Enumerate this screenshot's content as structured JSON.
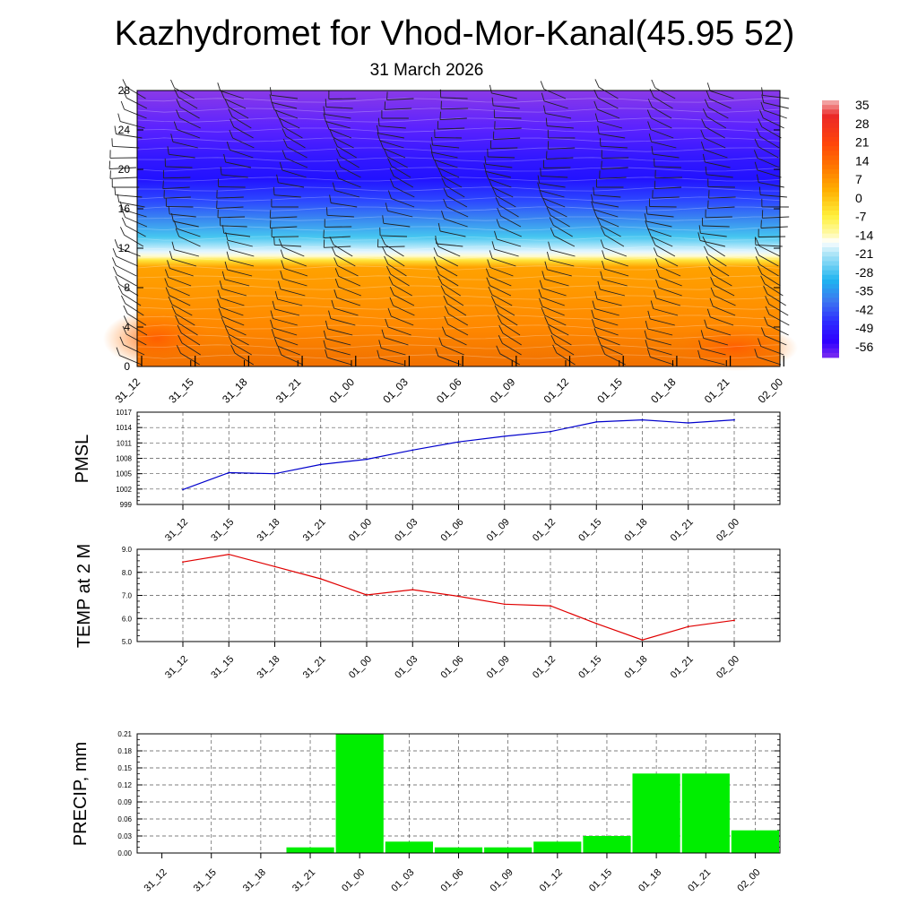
{
  "title": "Kazhydromet for Vhod-Mor-Kanal(45.95 52)",
  "subtitle": "31 March 2026",
  "time_labels": [
    "31_12",
    "31_15",
    "31_18",
    "31_21",
    "01_00",
    "01_03",
    "01_06",
    "01_09",
    "01_12",
    "01_15",
    "01_18",
    "01_21",
    "02_00"
  ],
  "chart_data": [
    {
      "type": "heatmap",
      "name": "temperature-cross-section",
      "x": [
        "31_12",
        "31_15",
        "31_18",
        "31_21",
        "01_00",
        "01_03",
        "01_06",
        "01_09",
        "01_12",
        "01_15",
        "01_18",
        "01_21",
        "02_00"
      ],
      "ylim": [
        0,
        28
      ],
      "yticks": [
        "0",
        "4",
        "8",
        "12",
        "16",
        "20",
        "24",
        "28"
      ],
      "grid": false,
      "wind_barbs": true,
      "colorbar": {
        "labels": [
          "35",
          "28",
          "21",
          "14",
          "7",
          "0",
          "-7",
          "-14",
          "-21",
          "-28",
          "-35",
          "-42",
          "-49",
          "-56"
        ],
        "colors": [
          "#f4b3b3",
          "#e82020",
          "#ff4a0a",
          "#ff7a00",
          "#ffb300",
          "#fff23a",
          "#fff9a8",
          "#ffffff",
          "#a8e4f7",
          "#1fb7f0",
          "#3a78f0",
          "#2f2bff",
          "#3000ff",
          "#7a2ff0"
        ]
      }
    },
    {
      "type": "line",
      "name": "pmsl",
      "ylabel": "PMSL",
      "ylim": [
        999,
        1017
      ],
      "yticks": [
        "999",
        "1002",
        "1005",
        "1008",
        "1011",
        "1014",
        "1017"
      ],
      "x": [
        "31_12",
        "31_15",
        "31_18",
        "31_21",
        "01_00",
        "01_03",
        "01_06",
        "01_09",
        "01_12",
        "01_15",
        "01_18",
        "01_21",
        "02_00"
      ],
      "series": [
        {
          "name": "PMSL",
          "color": "#0000cc",
          "values": [
            1001.9,
            1005.2,
            1005.0,
            1006.8,
            1007.8,
            1009.6,
            1011.2,
            1012.3,
            1013.2,
            1015.1,
            1015.5,
            1014.9,
            1015.5
          ]
        }
      ],
      "grid": true
    },
    {
      "type": "line",
      "name": "temp2m",
      "ylabel": "TEMP at 2 M",
      "ylim": [
        5.0,
        9.0
      ],
      "yticks": [
        "5.0",
        "6.0",
        "7.0",
        "8.0",
        "9.0"
      ],
      "x": [
        "31_12",
        "31_15",
        "31_18",
        "31_21",
        "01_00",
        "01_03",
        "01_06",
        "01_09",
        "01_12",
        "01_15",
        "01_18",
        "01_21",
        "02_00"
      ],
      "series": [
        {
          "name": "TEMP",
          "color": "#e00000",
          "values": [
            8.45,
            8.78,
            8.25,
            7.72,
            7.02,
            7.25,
            6.96,
            6.62,
            6.55,
            5.78,
            5.07,
            5.65,
            5.92
          ]
        }
      ],
      "grid": true
    },
    {
      "type": "bar",
      "name": "precip",
      "ylabel": "PRECIP, mm",
      "ylim": [
        0,
        0.21
      ],
      "yticks": [
        "0.00",
        "0.03",
        "0.06",
        "0.09",
        "0.12",
        "0.15",
        "0.18",
        "0.21"
      ],
      "categories": [
        "31_12",
        "31_15",
        "31_18",
        "31_21",
        "01_00",
        "01_03",
        "01_06",
        "01_09",
        "01_12",
        "01_15",
        "01_18",
        "01_21",
        "02_00"
      ],
      "values": [
        0,
        0,
        0,
        0.01,
        0.21,
        0.02,
        0.01,
        0.01,
        0.02,
        0.03,
        0.14,
        0.14,
        0.04
      ],
      "color": "#00ee00",
      "grid": true
    }
  ]
}
